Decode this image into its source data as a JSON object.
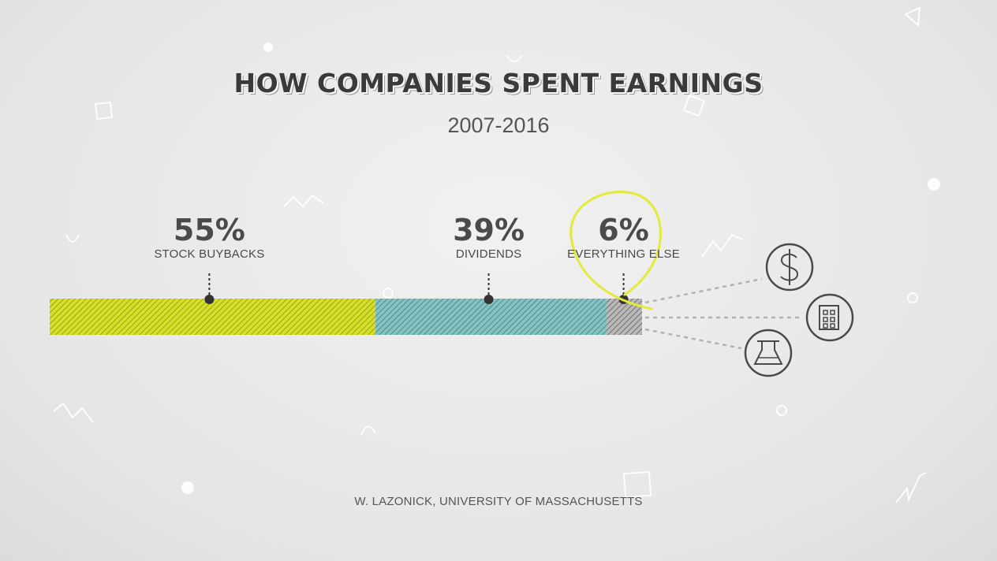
{
  "header": {
    "title": "HOW COMPANIES SPENT EARNINGS",
    "subtitle": "2007-2016"
  },
  "footer": {
    "source": "W. LAZONICK, UNIVERSITY OF MASSACHUSETTS"
  },
  "chart_data": {
    "type": "bar",
    "orientation": "horizontal-stacked",
    "title": "HOW COMPANIES SPENT EARNINGS",
    "subtitle": "2007-2016",
    "xlabel": "",
    "ylabel": "",
    "grid": false,
    "legend": "none",
    "categories": [
      "STOCK BUYBACKS",
      "DIVIDENDS",
      "EVERYTHING ELSE"
    ],
    "values": [
      55,
      39,
      6
    ],
    "value_labels": [
      "55%",
      "39%",
      "6%"
    ],
    "colors": [
      "#d6df2a",
      "#7fbcbc",
      "#9a9a9a"
    ],
    "highlight_color": "#e3ea3a",
    "highlighted_category": "EVERYTHING ELSE",
    "breakdown_icons": [
      "dollar-icon",
      "building-icon",
      "flask-icon"
    ]
  }
}
